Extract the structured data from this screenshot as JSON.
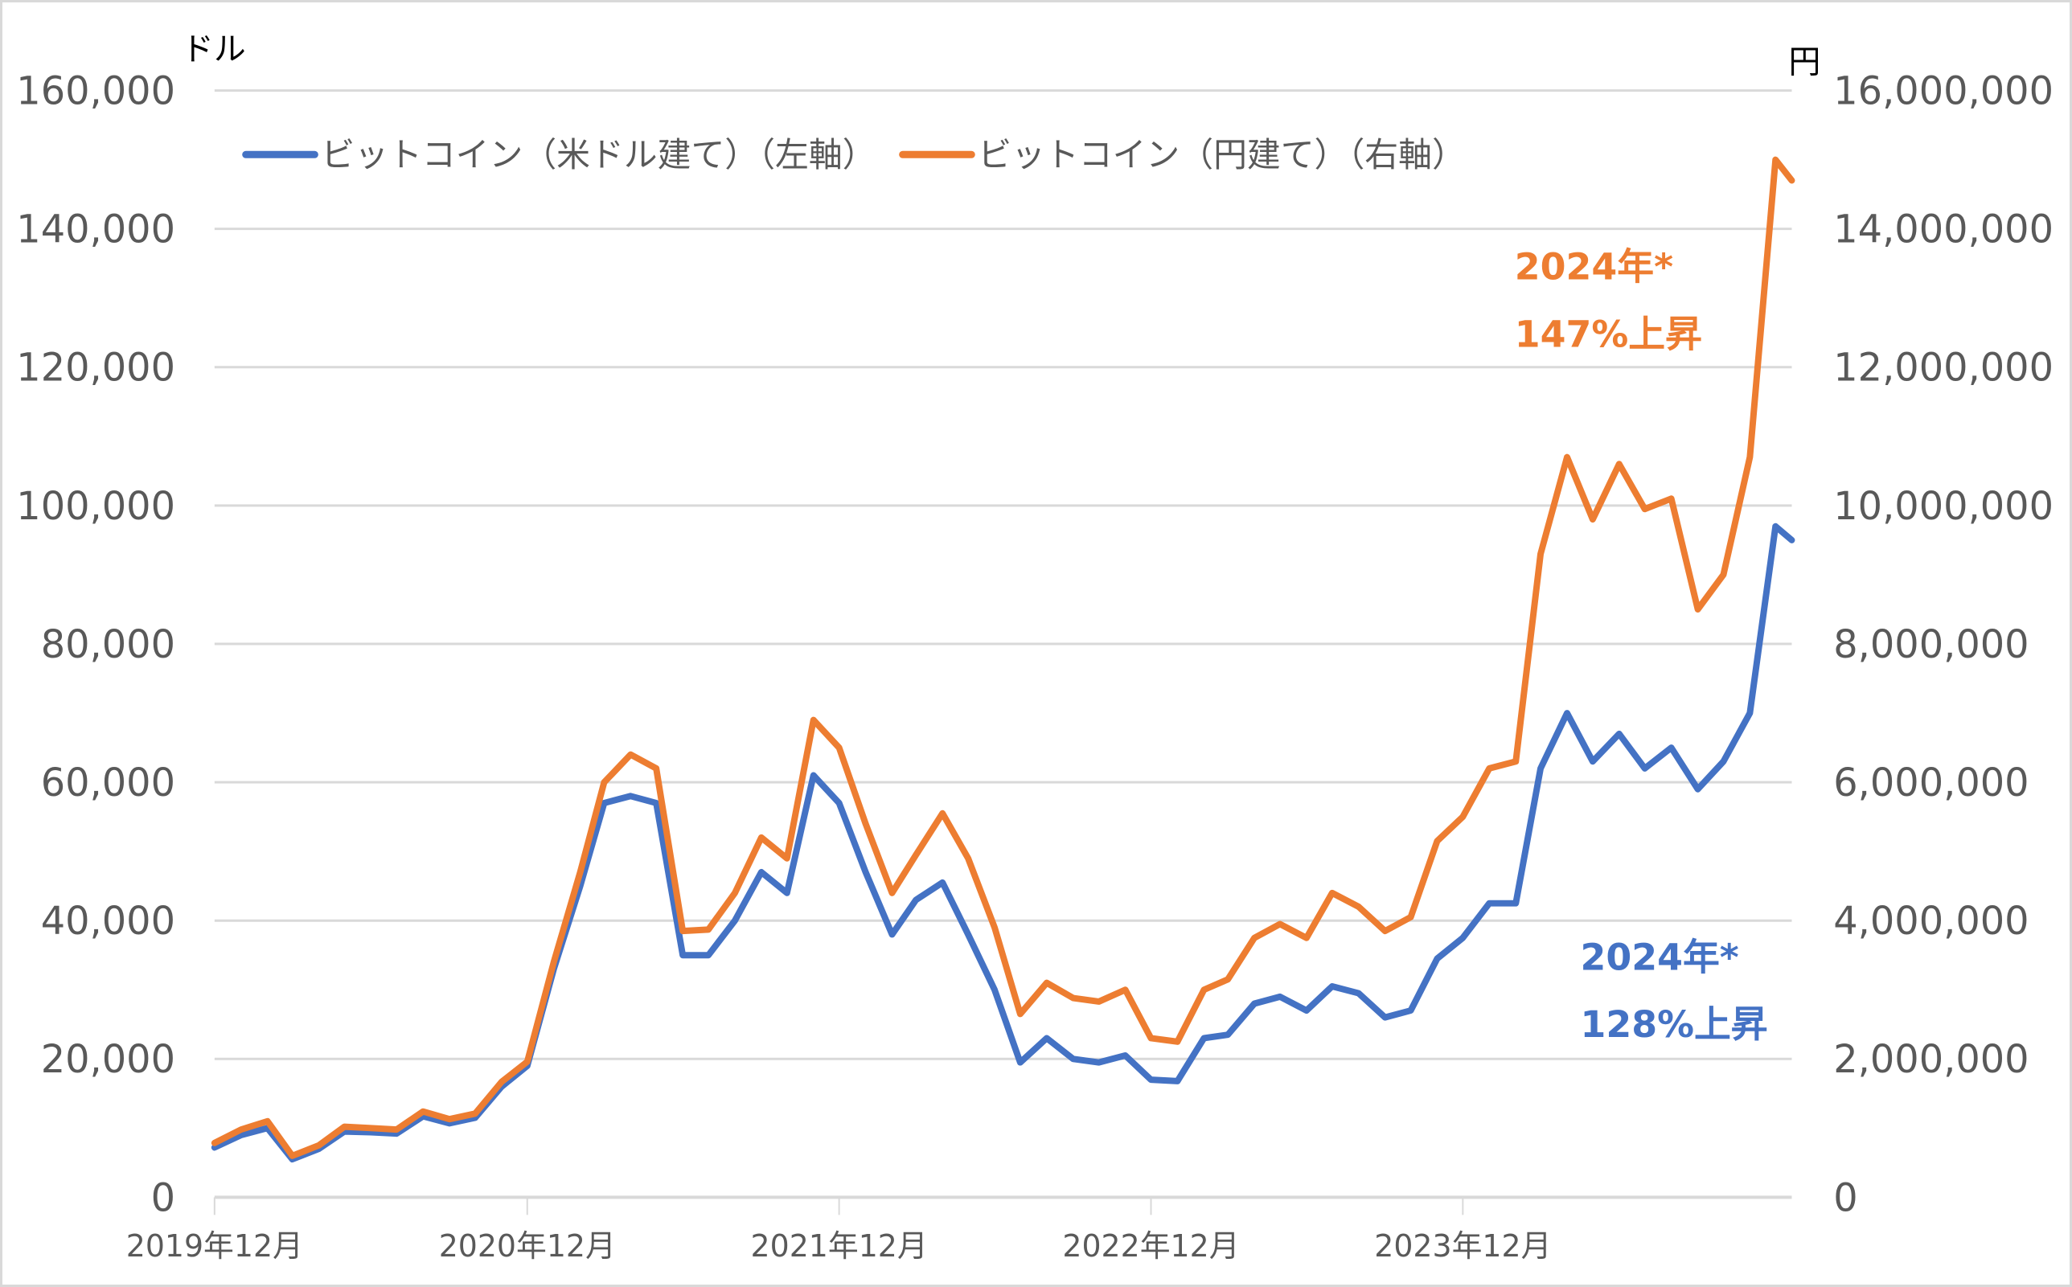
{
  "chart_data": {
    "type": "line",
    "title": "",
    "left_axis": {
      "unit_label": "ドル",
      "ylim": [
        0,
        160000
      ],
      "ticks": [
        "0",
        "20,000",
        "40,000",
        "60,000",
        "80,000",
        "100,000",
        "120,000",
        "140,000",
        "160,000"
      ]
    },
    "right_axis": {
      "unit_label": "円",
      "ylim": [
        0,
        16000000
      ],
      "ticks": [
        "0",
        "2,000,000",
        "4,000,000",
        "6,000,000",
        "8,000,000",
        "10,000,000",
        "12,000,000",
        "14,000,000",
        "16,000,000"
      ]
    },
    "x_ticks": [
      {
        "date": "2019-12-01",
        "label": "2019年12月"
      },
      {
        "date": "2020-12-01",
        "label": "2020年12月"
      },
      {
        "date": "2021-12-01",
        "label": "2021年12月"
      },
      {
        "date": "2022-12-01",
        "label": "2022年12月"
      },
      {
        "date": "2023-12-01",
        "label": "2023年12月"
      }
    ],
    "x_range": [
      "2019-12-01",
      "2024-12-20"
    ],
    "grid": "horizontal",
    "legend_placement": "top-left",
    "dates": [
      "2019-12-01",
      "2020-01-01",
      "2020-02-01",
      "2020-03-01",
      "2020-04-01",
      "2020-05-01",
      "2020-06-01",
      "2020-07-01",
      "2020-08-01",
      "2020-09-01",
      "2020-10-01",
      "2020-11-01",
      "2020-12-01",
      "2021-01-01",
      "2021-02-01",
      "2021-03-01",
      "2021-04-01",
      "2021-05-01",
      "2021-06-01",
      "2021-07-01",
      "2021-08-01",
      "2021-09-01",
      "2021-10-01",
      "2021-11-01",
      "2021-12-01",
      "2022-01-01",
      "2022-02-01",
      "2022-03-01",
      "2022-04-01",
      "2022-05-01",
      "2022-06-01",
      "2022-07-01",
      "2022-08-01",
      "2022-09-01",
      "2022-10-01",
      "2022-11-01",
      "2022-12-01",
      "2023-01-01",
      "2023-02-01",
      "2023-03-01",
      "2023-04-01",
      "2023-05-01",
      "2023-06-01",
      "2023-07-01",
      "2023-08-01",
      "2023-09-01",
      "2023-10-01",
      "2023-11-01",
      "2023-12-01",
      "2024-01-01",
      "2024-02-01",
      "2024-03-01",
      "2024-04-01",
      "2024-05-01",
      "2024-06-01",
      "2024-07-01",
      "2024-08-01",
      "2024-09-01",
      "2024-10-01",
      "2024-11-01",
      "2024-12-01",
      "2024-12-20"
    ],
    "series": [
      {
        "name": "ビットコイン（米ドル建て）（左軸）",
        "axis": "left",
        "color": "#4472c4",
        "values": [
          7200,
          9000,
          10000,
          5500,
          7000,
          9500,
          9400,
          9200,
          11700,
          10700,
          11500,
          16000,
          19000,
          33000,
          45000,
          57000,
          58000,
          57000,
          35000,
          35000,
          40000,
          47000,
          44000,
          61000,
          57000,
          47000,
          38000,
          43000,
          45500,
          38000,
          30000,
          19500,
          23000,
          20000,
          19500,
          20500,
          17000,
          16800,
          23000,
          23500,
          28000,
          29000,
          27000,
          30500,
          29500,
          26000,
          27000,
          34500,
          37500,
          42500,
          42500,
          62000,
          70000,
          63000,
          67000,
          62000,
          65000,
          59000,
          63000,
          70000,
          97000,
          95000
        ]
      },
      {
        "name": "ビットコイン（円建て）（右軸）",
        "axis": "right",
        "color": "#ed7d31",
        "values": [
          785000,
          980000,
          1100000,
          600000,
          750000,
          1020000,
          1000000,
          980000,
          1240000,
          1130000,
          1210000,
          1670000,
          1960000,
          3400000,
          4700000,
          6000000,
          6400000,
          6200000,
          3850000,
          3870000,
          4400000,
          5200000,
          4900000,
          6900000,
          6500000,
          5400000,
          4400000,
          4950000,
          5550000,
          4900000,
          3900000,
          2650000,
          3100000,
          2880000,
          2830000,
          3000000,
          2300000,
          2250000,
          3000000,
          3150000,
          3750000,
          3950000,
          3750000,
          4400000,
          4200000,
          3850000,
          4050000,
          5150000,
          5500000,
          6200000,
          6300000,
          9300000,
          10700000,
          9800000,
          10600000,
          9950000,
          10100000,
          8500000,
          9000000,
          10700000,
          15000000,
          14700000
        ]
      }
    ],
    "annotations": [
      {
        "lines": [
          "2024年*",
          "147%上昇"
        ],
        "color": "#ed7d31"
      },
      {
        "lines": [
          "2024年*",
          "128%上昇"
        ],
        "color": "#4472c4"
      }
    ]
  }
}
